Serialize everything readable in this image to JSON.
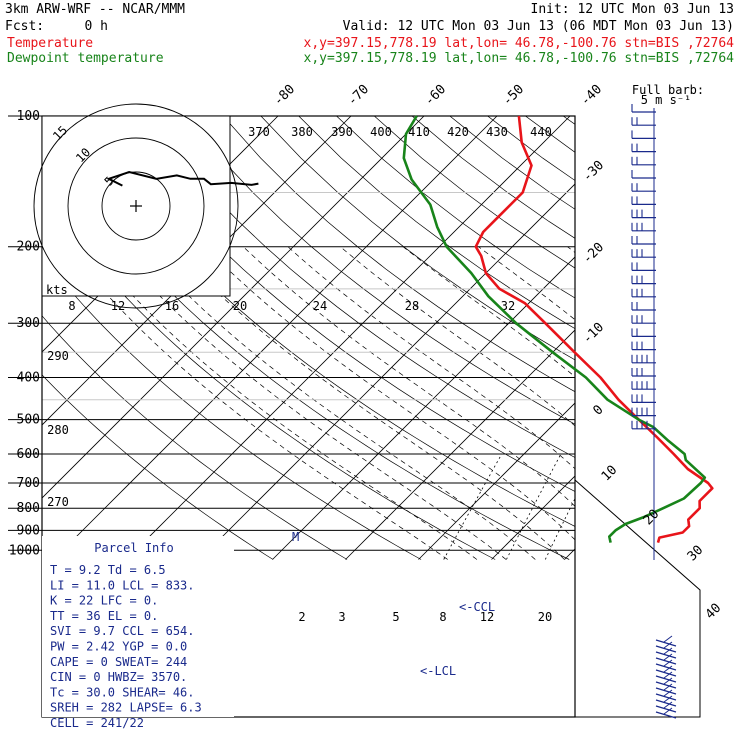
{
  "header": {
    "model": "3km ARW-WRF -- NCAR/MMM",
    "init": "Init: 12 UTC Mon 03 Jun 13",
    "fcst_label": "Fcst:",
    "fcst_value": "0 h",
    "valid": "Valid: 12 UTC Mon 03 Jun 13 (06 MDT Mon 03 Jun 13)"
  },
  "legend": {
    "temperature": {
      "name": "Temperature",
      "info": "x,y=397.15,778.19   lat,lon= 46.78,-100.76   stn=BIS ,72764",
      "color": "#e8141a"
    },
    "dewpoint": {
      "name": "Dewpoint temperature",
      "info": "x,y=397.15,778.19   lat,lon= 46.78,-100.76   stn=BIS ,72764",
      "color": "#18841a"
    }
  },
  "chart_data": {
    "type": "line",
    "pressure_ticks": [
      100,
      200,
      300,
      400,
      500,
      600,
      700,
      800,
      900,
      1000
    ],
    "isotherm_labels": [
      "-80",
      "-70",
      "-60",
      "-50",
      "-40",
      "-30",
      "-20",
      "-10",
      "0",
      "10",
      "20",
      "30",
      "40"
    ],
    "theta_labels": [
      "370",
      "380",
      "390",
      "400",
      "410",
      "420",
      "430",
      "440"
    ],
    "theta_left_labels": [
      "290",
      "280",
      "270"
    ],
    "mixing_ratio_labels": [
      "2",
      "3",
      "5",
      "8",
      "12",
      "20"
    ],
    "hodograph": {
      "units": "kts",
      "ring_labels": [
        "5",
        "10",
        "15"
      ],
      "speed_ticks": [
        "8",
        "12",
        "16",
        "20",
        "24",
        "28",
        "32"
      ],
      "path": [
        [
          -2,
          3
        ],
        [
          -4,
          4
        ],
        [
          -1,
          5
        ],
        [
          3,
          4
        ],
        [
          6,
          4.5
        ],
        [
          8,
          4
        ],
        [
          10,
          4
        ],
        [
          11,
          3.2
        ],
        [
          14,
          3.4
        ],
        [
          17,
          3.1
        ],
        [
          18,
          3.3
        ]
      ]
    },
    "wind_barb_label": "Full barb:",
    "wind_barb_units": "5 m s⁻¹",
    "annotations": {
      "ccl": "<-CCL",
      "lcl": "<-LCL",
      "m": "M"
    },
    "series": [
      {
        "name": "Temperature",
        "color": "#e8141a",
        "points": [
          [
            960,
            10.5
          ],
          [
            935,
            10
          ],
          [
            910,
            12.5
          ],
          [
            880,
            12.5
          ],
          [
            850,
            11.5
          ],
          [
            800,
            11.5
          ],
          [
            770,
            10.5
          ],
          [
            720,
            10.5
          ],
          [
            700,
            9.2
          ],
          [
            650,
            4.5
          ],
          [
            600,
            0.5
          ],
          [
            550,
            -4
          ],
          [
            500,
            -9
          ],
          [
            450,
            -14.5
          ],
          [
            400,
            -20
          ],
          [
            350,
            -27
          ],
          [
            300,
            -35
          ],
          [
            270,
            -40.5
          ],
          [
            250,
            -46
          ],
          [
            230,
            -50
          ],
          [
            210,
            -53
          ],
          [
            200,
            -55
          ],
          [
            185,
            -56
          ],
          [
            170,
            -56
          ],
          [
            150,
            -56
          ],
          [
            130,
            -58.5
          ],
          [
            115,
            -63
          ],
          [
            100,
            -67
          ]
        ]
      },
      {
        "name": "Dewpoint temperature",
        "color": "#18841a",
        "points": [
          [
            960,
            4
          ],
          [
            930,
            3
          ],
          [
            900,
            3
          ],
          [
            870,
            3.5
          ],
          [
            840,
            5
          ],
          [
            800,
            6.5
          ],
          [
            760,
            8
          ],
          [
            700,
            8.2
          ],
          [
            680,
            8
          ],
          [
            620,
            3
          ],
          [
            600,
            2
          ],
          [
            560,
            -2
          ],
          [
            520,
            -6
          ],
          [
            500,
            -9
          ],
          [
            450,
            -16
          ],
          [
            400,
            -22
          ],
          [
            350,
            -30
          ],
          [
            300,
            -39
          ],
          [
            260,
            -46.5
          ],
          [
            230,
            -52
          ],
          [
            200,
            -59
          ],
          [
            180,
            -63
          ],
          [
            160,
            -67
          ],
          [
            140,
            -73
          ],
          [
            125,
            -77
          ],
          [
            110,
            -80
          ],
          [
            100,
            -81
          ]
        ]
      }
    ]
  },
  "parcel_info": {
    "title": "Parcel Info",
    "rows": [
      "T  =    9.2  Td =   6.5",
      "LI =   11.0  LCL =  833.",
      "K  =     22  LFC =    0.",
      "TT =     36  EL  =    0.",
      "SVI =   9.7  CCL =  654.",
      "PW =   2.42  YGP =   0.0",
      "CAPE =    0  SWEAT=  244",
      "CIN =     0  HWBZ= 3570.",
      "Tc =   30.0  SHEAR=  46.",
      "SREH =  282  LAPSE=  6.3",
      "CELL = 241/22"
    ]
  }
}
